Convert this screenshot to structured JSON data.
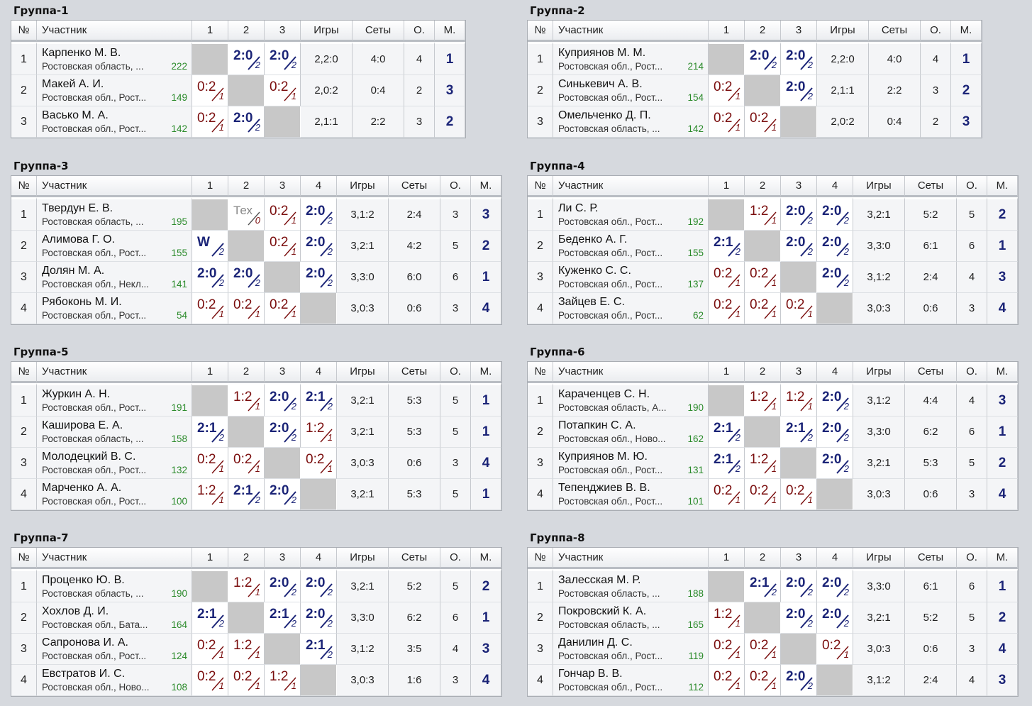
{
  "headers": {
    "num": "№",
    "player": "Участник",
    "games": "Игры",
    "sets": "Сеты",
    "points": "О.",
    "place": "М."
  },
  "groups": [
    {
      "title": "Группа-1",
      "rows": [
        {
          "num": "1",
          "name": "Карпенко М. В.",
          "region": "Ростовская область, ...",
          "rating": "222",
          "results": [
            null,
            {
              "s": "2:0",
              "t": "2",
              "k": "w"
            },
            {
              "s": "2:0",
              "t": "2",
              "k": "w"
            }
          ],
          "games": "2,2:0",
          "sets": "4:0",
          "pts": "4",
          "place": "1"
        },
        {
          "num": "2",
          "name": "Макей А. И.",
          "region": "Ростовская обл., Рост...",
          "rating": "149",
          "results": [
            {
              "s": "0:2",
              "t": "1",
              "k": "l"
            },
            null,
            {
              "s": "0:2",
              "t": "1",
              "k": "l"
            }
          ],
          "games": "2,0:2",
          "sets": "0:4",
          "pts": "2",
          "place": "3"
        },
        {
          "num": "3",
          "name": "Васько М. А.",
          "region": "Ростовская обл., Рост...",
          "rating": "142",
          "results": [
            {
              "s": "0:2",
              "t": "1",
              "k": "l"
            },
            {
              "s": "2:0",
              "t": "2",
              "k": "w"
            },
            null
          ],
          "games": "2,1:1",
          "sets": "2:2",
          "pts": "3",
          "place": "2"
        }
      ]
    },
    {
      "title": "Группа-2",
      "rows": [
        {
          "num": "1",
          "name": "Куприянов М. М.",
          "region": "Ростовская обл., Рост...",
          "rating": "214",
          "results": [
            null,
            {
              "s": "2:0",
              "t": "2",
              "k": "w"
            },
            {
              "s": "2:0",
              "t": "2",
              "k": "w"
            }
          ],
          "games": "2,2:0",
          "sets": "4:0",
          "pts": "4",
          "place": "1"
        },
        {
          "num": "2",
          "name": "Синькевич А. В.",
          "region": "Ростовская обл., Рост...",
          "rating": "154",
          "results": [
            {
              "s": "0:2",
              "t": "1",
              "k": "l"
            },
            null,
            {
              "s": "2:0",
              "t": "2",
              "k": "w"
            }
          ],
          "games": "2,1:1",
          "sets": "2:2",
          "pts": "3",
          "place": "2"
        },
        {
          "num": "3",
          "name": "Омельченко Д. П.",
          "region": "Ростовская область, ...",
          "rating": "142",
          "results": [
            {
              "s": "0:2",
              "t": "1",
              "k": "l"
            },
            {
              "s": "0:2",
              "t": "1",
              "k": "l"
            },
            null
          ],
          "games": "2,0:2",
          "sets": "0:4",
          "pts": "2",
          "place": "3"
        }
      ]
    },
    {
      "title": "Группа-3",
      "rows": [
        {
          "num": "1",
          "name": "Твердун Е. В.",
          "region": "Ростовская область, ...",
          "rating": "195",
          "results": [
            null,
            {
              "s": "Тех",
              "t": "0",
              "k": "t"
            },
            {
              "s": "0:2",
              "t": "1",
              "k": "l"
            },
            {
              "s": "2:0",
              "t": "2",
              "k": "w"
            }
          ],
          "games": "3,1:2",
          "sets": "2:4",
          "pts": "3",
          "place": "3"
        },
        {
          "num": "2",
          "name": "Алимова Г. О.",
          "region": "Ростовская обл., Рост...",
          "rating": "155",
          "results": [
            {
              "s": "W",
              "t": "2",
              "k": "tw"
            },
            null,
            {
              "s": "0:2",
              "t": "1",
              "k": "l"
            },
            {
              "s": "2:0",
              "t": "2",
              "k": "w"
            }
          ],
          "games": "3,2:1",
          "sets": "4:2",
          "pts": "5",
          "place": "2"
        },
        {
          "num": "3",
          "name": "Долян М. А.",
          "region": "Ростовская обл., Некл...",
          "rating": "141",
          "results": [
            {
              "s": "2:0",
              "t": "2",
              "k": "w"
            },
            {
              "s": "2:0",
              "t": "2",
              "k": "w"
            },
            null,
            {
              "s": "2:0",
              "t": "2",
              "k": "w"
            }
          ],
          "games": "3,3:0",
          "sets": "6:0",
          "pts": "6",
          "place": "1"
        },
        {
          "num": "4",
          "name": "Рябоконь М. И.",
          "region": "Ростовская обл., Рост...",
          "rating": "54",
          "results": [
            {
              "s": "0:2",
              "t": "1",
              "k": "l"
            },
            {
              "s": "0:2",
              "t": "1",
              "k": "l"
            },
            {
              "s": "0:2",
              "t": "1",
              "k": "l"
            },
            null
          ],
          "games": "3,0:3",
          "sets": "0:6",
          "pts": "3",
          "place": "4"
        }
      ]
    },
    {
      "title": "Группа-4",
      "rows": [
        {
          "num": "1",
          "name": "Ли С. Р.",
          "region": "Ростовская обл., Рост...",
          "rating": "192",
          "results": [
            null,
            {
              "s": "1:2",
              "t": "1",
              "k": "l"
            },
            {
              "s": "2:0",
              "t": "2",
              "k": "w"
            },
            {
              "s": "2:0",
              "t": "2",
              "k": "w"
            }
          ],
          "games": "3,2:1",
          "sets": "5:2",
          "pts": "5",
          "place": "2"
        },
        {
          "num": "2",
          "name": "Беденко А. Г.",
          "region": "Ростовская обл., Рост...",
          "rating": "155",
          "results": [
            {
              "s": "2:1",
              "t": "2",
              "k": "w"
            },
            null,
            {
              "s": "2:0",
              "t": "2",
              "k": "w"
            },
            {
              "s": "2:0",
              "t": "2",
              "k": "w"
            }
          ],
          "games": "3,3:0",
          "sets": "6:1",
          "pts": "6",
          "place": "1"
        },
        {
          "num": "3",
          "name": "Куженко С. С.",
          "region": "Ростовская обл., Рост...",
          "rating": "137",
          "results": [
            {
              "s": "0:2",
              "t": "1",
              "k": "l"
            },
            {
              "s": "0:2",
              "t": "1",
              "k": "l"
            },
            null,
            {
              "s": "2:0",
              "t": "2",
              "k": "w"
            }
          ],
          "games": "3,1:2",
          "sets": "2:4",
          "pts": "4",
          "place": "3"
        },
        {
          "num": "4",
          "name": "Зайцев Е. С.",
          "region": "Ростовская обл., Рост...",
          "rating": "62",
          "results": [
            {
              "s": "0:2",
              "t": "1",
              "k": "l"
            },
            {
              "s": "0:2",
              "t": "1",
              "k": "l"
            },
            {
              "s": "0:2",
              "t": "1",
              "k": "l"
            },
            null
          ],
          "games": "3,0:3",
          "sets": "0:6",
          "pts": "3",
          "place": "4"
        }
      ]
    },
    {
      "title": "Группа-5",
      "rows": [
        {
          "num": "1",
          "name": "Журкин А. Н.",
          "region": "Ростовская обл., Рост...",
          "rating": "191",
          "results": [
            null,
            {
              "s": "1:2",
              "t": "1",
              "k": "l"
            },
            {
              "s": "2:0",
              "t": "2",
              "k": "w"
            },
            {
              "s": "2:1",
              "t": "2",
              "k": "w"
            }
          ],
          "games": "3,2:1",
          "sets": "5:3",
          "pts": "5",
          "place": "1"
        },
        {
          "num": "2",
          "name": "Каширова Е. А.",
          "region": "Ростовская область, ...",
          "rating": "158",
          "results": [
            {
              "s": "2:1",
              "t": "2",
              "k": "w"
            },
            null,
            {
              "s": "2:0",
              "t": "2",
              "k": "w"
            },
            {
              "s": "1:2",
              "t": "1",
              "k": "l"
            }
          ],
          "games": "3,2:1",
          "sets": "5:3",
          "pts": "5",
          "place": "1"
        },
        {
          "num": "3",
          "name": "Молодецкий В. С.",
          "region": "Ростовская обл., Рост...",
          "rating": "132",
          "results": [
            {
              "s": "0:2",
              "t": "1",
              "k": "l"
            },
            {
              "s": "0:2",
              "t": "1",
              "k": "l"
            },
            null,
            {
              "s": "0:2",
              "t": "1",
              "k": "l"
            }
          ],
          "games": "3,0:3",
          "sets": "0:6",
          "pts": "3",
          "place": "4"
        },
        {
          "num": "4",
          "name": "Марченко А. А.",
          "region": "Ростовская обл., Рост...",
          "rating": "100",
          "results": [
            {
              "s": "1:2",
              "t": "1",
              "k": "l"
            },
            {
              "s": "2:1",
              "t": "2",
              "k": "w"
            },
            {
              "s": "2:0",
              "t": "2",
              "k": "w"
            },
            null
          ],
          "games": "3,2:1",
          "sets": "5:3",
          "pts": "5",
          "place": "1"
        }
      ]
    },
    {
      "title": "Группа-6",
      "rows": [
        {
          "num": "1",
          "name": "Караченцев С. Н.",
          "region": "Ростовская область, А...",
          "rating": "190",
          "results": [
            null,
            {
              "s": "1:2",
              "t": "1",
              "k": "l"
            },
            {
              "s": "1:2",
              "t": "1",
              "k": "l"
            },
            {
              "s": "2:0",
              "t": "2",
              "k": "w"
            }
          ],
          "games": "3,1:2",
          "sets": "4:4",
          "pts": "4",
          "place": "3"
        },
        {
          "num": "2",
          "name": "Потапкин С. А.",
          "region": "Ростовская обл., Ново...",
          "rating": "162",
          "results": [
            {
              "s": "2:1",
              "t": "2",
              "k": "w"
            },
            null,
            {
              "s": "2:1",
              "t": "2",
              "k": "w"
            },
            {
              "s": "2:0",
              "t": "2",
              "k": "w"
            }
          ],
          "games": "3,3:0",
          "sets": "6:2",
          "pts": "6",
          "place": "1"
        },
        {
          "num": "3",
          "name": "Куприянов М. Ю.",
          "region": "Ростовская обл., Рост...",
          "rating": "131",
          "results": [
            {
              "s": "2:1",
              "t": "2",
              "k": "w"
            },
            {
              "s": "1:2",
              "t": "1",
              "k": "l"
            },
            null,
            {
              "s": "2:0",
              "t": "2",
              "k": "w"
            }
          ],
          "games": "3,2:1",
          "sets": "5:3",
          "pts": "5",
          "place": "2"
        },
        {
          "num": "4",
          "name": "Тепенджиев В. В.",
          "region": "Ростовская обл., Рост...",
          "rating": "101",
          "results": [
            {
              "s": "0:2",
              "t": "1",
              "k": "l"
            },
            {
              "s": "0:2",
              "t": "1",
              "k": "l"
            },
            {
              "s": "0:2",
              "t": "1",
              "k": "l"
            },
            null
          ],
          "games": "3,0:3",
          "sets": "0:6",
          "pts": "3",
          "place": "4"
        }
      ]
    },
    {
      "title": "Группа-7",
      "rows": [
        {
          "num": "1",
          "name": "Проценко Ю. В.",
          "region": "Ростовская область, ...",
          "rating": "190",
          "results": [
            null,
            {
              "s": "1:2",
              "t": "1",
              "k": "l"
            },
            {
              "s": "2:0",
              "t": "2",
              "k": "w"
            },
            {
              "s": "2:0",
              "t": "2",
              "k": "w"
            }
          ],
          "games": "3,2:1",
          "sets": "5:2",
          "pts": "5",
          "place": "2"
        },
        {
          "num": "2",
          "name": "Хохлов Д. И.",
          "region": "Ростовская обл., Бата...",
          "rating": "164",
          "results": [
            {
              "s": "2:1",
              "t": "2",
              "k": "w"
            },
            null,
            {
              "s": "2:1",
              "t": "2",
              "k": "w"
            },
            {
              "s": "2:0",
              "t": "2",
              "k": "w"
            }
          ],
          "games": "3,3:0",
          "sets": "6:2",
          "pts": "6",
          "place": "1"
        },
        {
          "num": "3",
          "name": "Сапронова И. А.",
          "region": "Ростовская обл., Рост...",
          "rating": "124",
          "results": [
            {
              "s": "0:2",
              "t": "1",
              "k": "l"
            },
            {
              "s": "1:2",
              "t": "1",
              "k": "l"
            },
            null,
            {
              "s": "2:1",
              "t": "2",
              "k": "w"
            }
          ],
          "games": "3,1:2",
          "sets": "3:5",
          "pts": "4",
          "place": "3"
        },
        {
          "num": "4",
          "name": "Евстратов И. С.",
          "region": "Ростовская обл., Ново...",
          "rating": "108",
          "results": [
            {
              "s": "0:2",
              "t": "1",
              "k": "l"
            },
            {
              "s": "0:2",
              "t": "1",
              "k": "l"
            },
            {
              "s": "1:2",
              "t": "1",
              "k": "l"
            },
            null
          ],
          "games": "3,0:3",
          "sets": "1:6",
          "pts": "3",
          "place": "4"
        }
      ]
    },
    {
      "title": "Группа-8",
      "rows": [
        {
          "num": "1",
          "name": "Залесская М. Р.",
          "region": "Ростовская область, ...",
          "rating": "188",
          "results": [
            null,
            {
              "s": "2:1",
              "t": "2",
              "k": "w"
            },
            {
              "s": "2:0",
              "t": "2",
              "k": "w"
            },
            {
              "s": "2:0",
              "t": "2",
              "k": "w"
            }
          ],
          "games": "3,3:0",
          "sets": "6:1",
          "pts": "6",
          "place": "1"
        },
        {
          "num": "2",
          "name": "Покровский К. А.",
          "region": "Ростовская область, ...",
          "rating": "165",
          "results": [
            {
              "s": "1:2",
              "t": "1",
              "k": "l"
            },
            null,
            {
              "s": "2:0",
              "t": "2",
              "k": "w"
            },
            {
              "s": "2:0",
              "t": "2",
              "k": "w"
            }
          ],
          "games": "3,2:1",
          "sets": "5:2",
          "pts": "5",
          "place": "2"
        },
        {
          "num": "3",
          "name": "Данилин Д. С.",
          "region": "Ростовская обл., Рост...",
          "rating": "119",
          "results": [
            {
              "s": "0:2",
              "t": "1",
              "k": "l"
            },
            {
              "s": "0:2",
              "t": "1",
              "k": "l"
            },
            null,
            {
              "s": "0:2",
              "t": "1",
              "k": "l"
            }
          ],
          "games": "3,0:3",
          "sets": "0:6",
          "pts": "3",
          "place": "4"
        },
        {
          "num": "4",
          "name": "Гончар В. В.",
          "region": "Ростовская обл., Рост...",
          "rating": "112",
          "results": [
            {
              "s": "0:2",
              "t": "1",
              "k": "l"
            },
            {
              "s": "0:2",
              "t": "1",
              "k": "l"
            },
            {
              "s": "2:0",
              "t": "2",
              "k": "w"
            },
            null
          ],
          "games": "3,1:2",
          "sets": "2:4",
          "pts": "4",
          "place": "3"
        }
      ]
    }
  ]
}
